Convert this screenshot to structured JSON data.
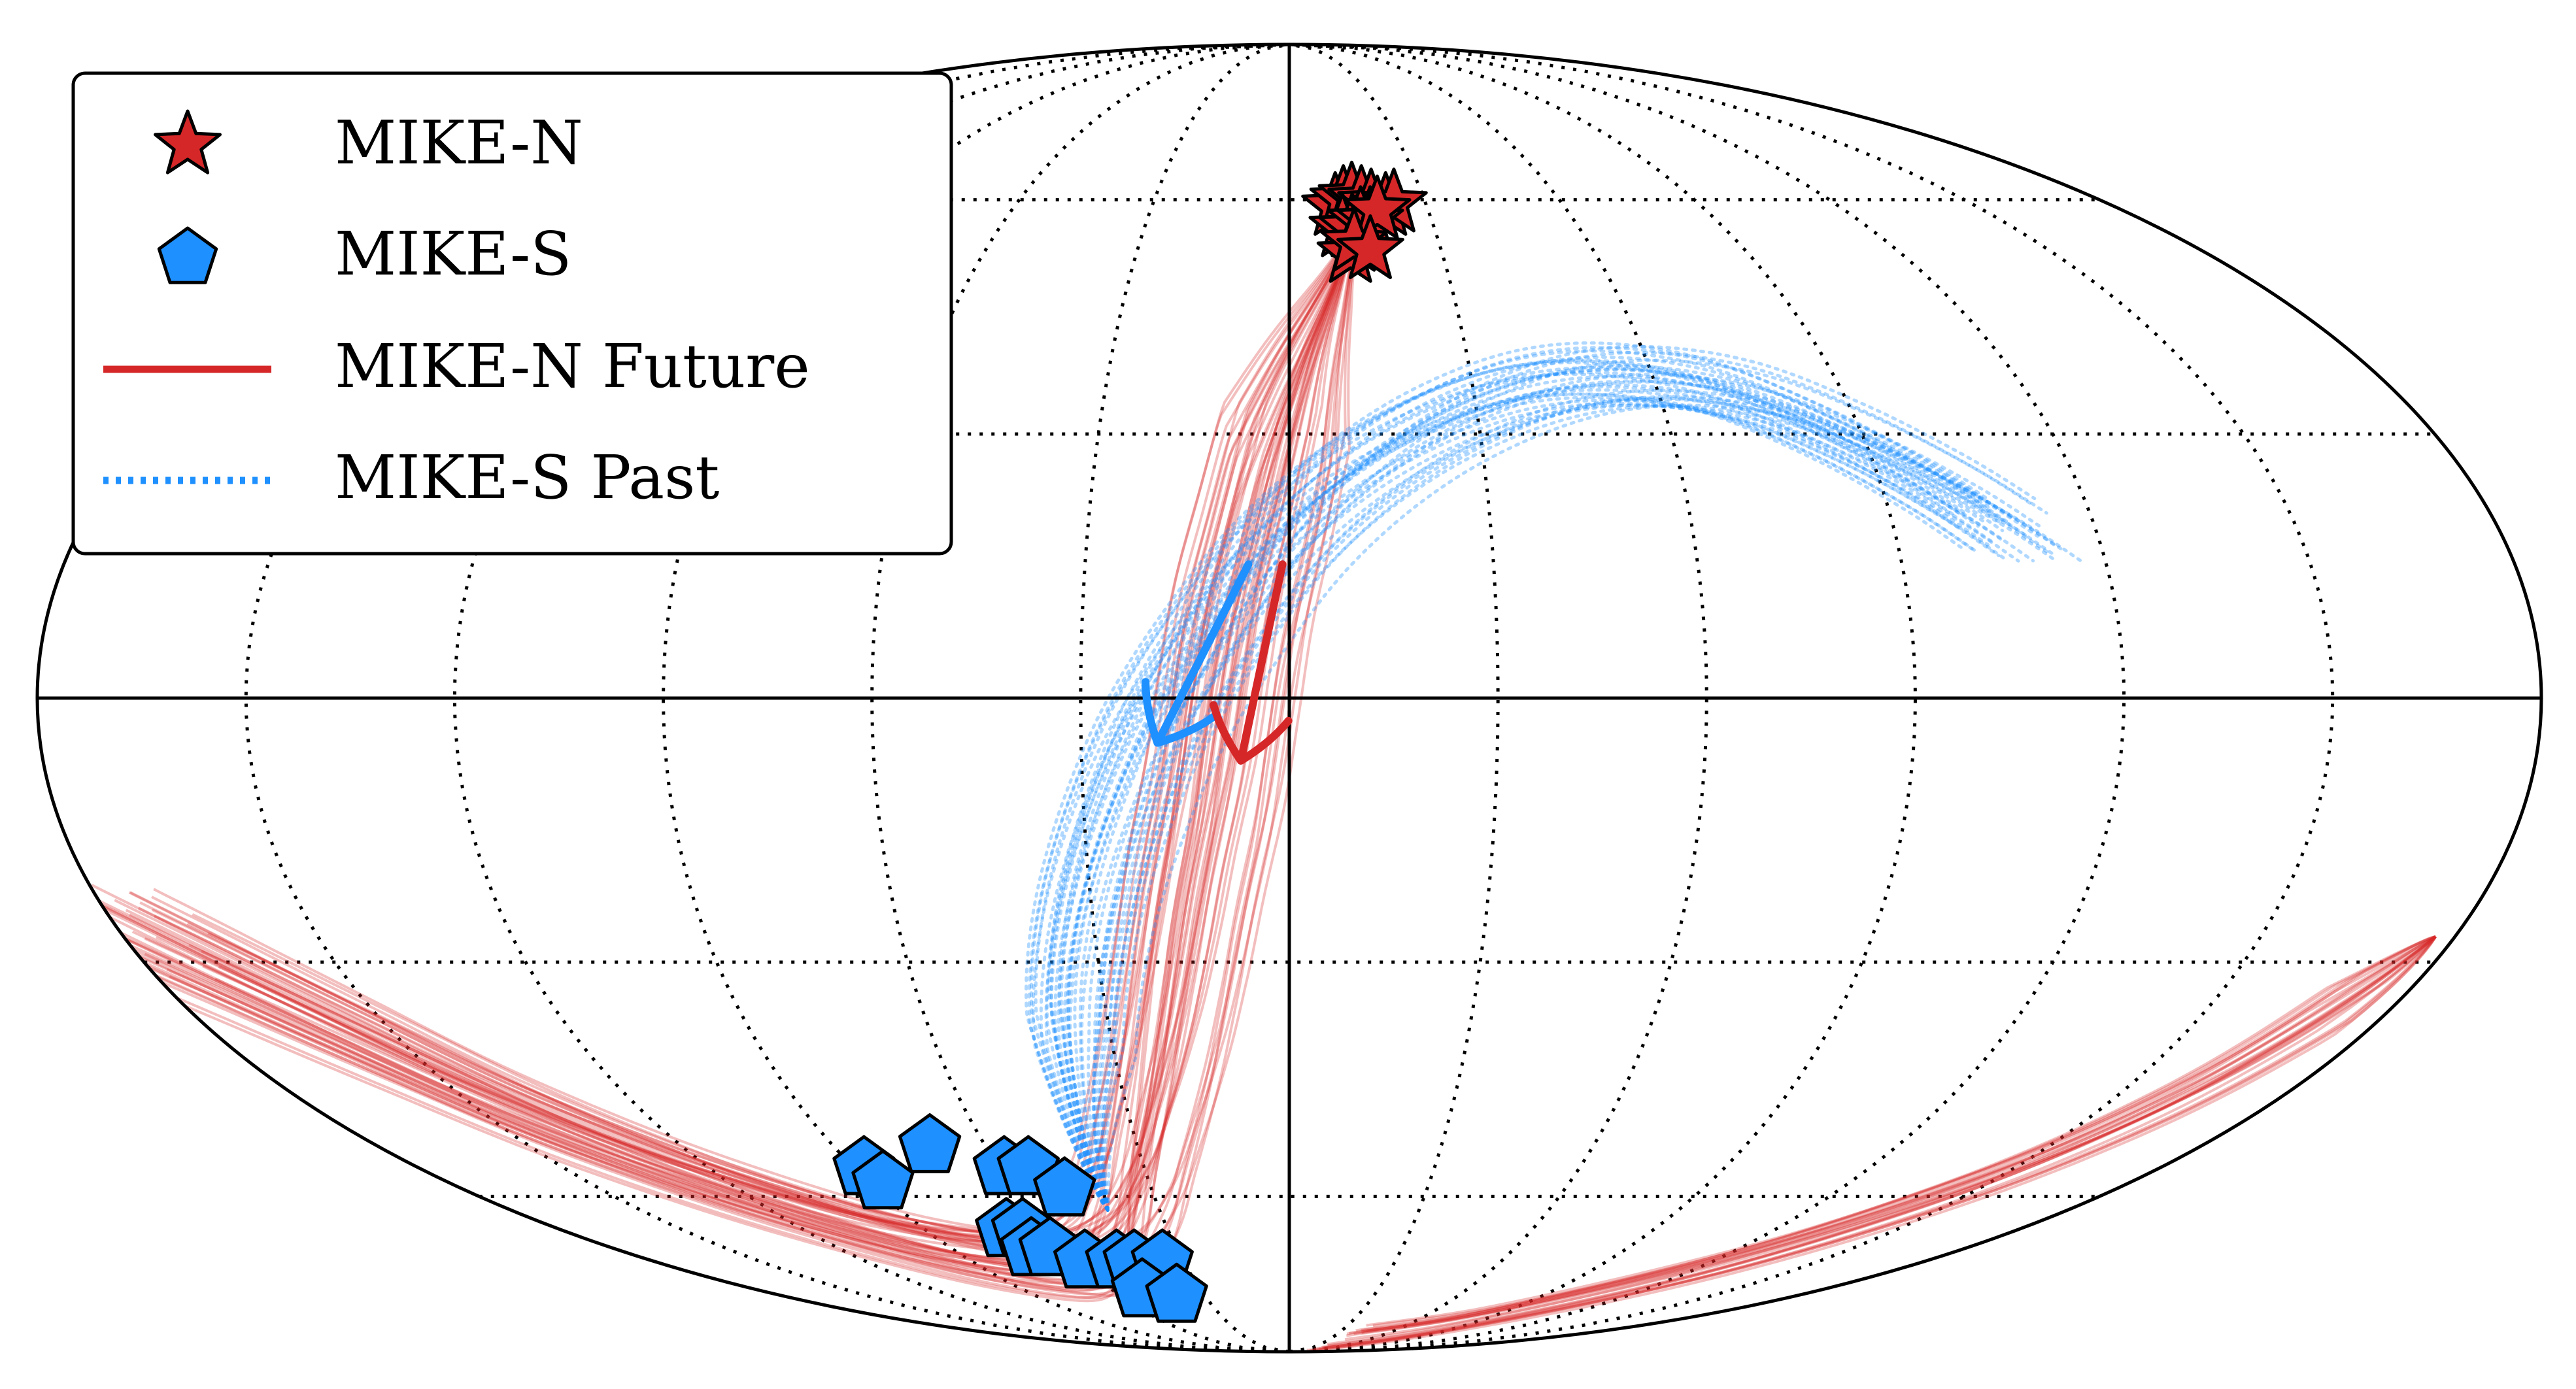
{
  "chart_data": {
    "type": "scatter",
    "projection": "mollweide",
    "grid": true,
    "legend_placement": "top-left",
    "grid_meridians_deg": [
      -150,
      -120,
      -90,
      -60,
      -30,
      0,
      30,
      60,
      90,
      120,
      150
    ],
    "grid_parallels_deg": [
      -60,
      -30,
      0,
      30,
      60
    ],
    "colors": {
      "mike_n": "#d62728",
      "mike_s": "#1e90ff",
      "grid": "#000000"
    },
    "legend": [
      {
        "label": "MIKE-N",
        "marker": "star",
        "color": "#d62728"
      },
      {
        "label": "MIKE-S",
        "marker": "pentagon",
        "color": "#1e90ff"
      },
      {
        "label": "MIKE-N Future",
        "marker": "solid-line",
        "color": "#d62728"
      },
      {
        "label": "MIKE-S Past",
        "marker": "dotted-line",
        "color": "#1e90ff"
      }
    ],
    "series": [
      {
        "name": "MIKE-N",
        "marker": "star",
        "points": [
          [
            10,
            59
          ],
          [
            12,
            60
          ],
          [
            14,
            60.5
          ],
          [
            16,
            60
          ],
          [
            18,
            59.5
          ],
          [
            21,
            59
          ],
          [
            23,
            59.5
          ],
          [
            11,
            56
          ],
          [
            13,
            56
          ],
          [
            15,
            57
          ],
          [
            17,
            57
          ],
          [
            19,
            58.5
          ],
          [
            12,
            52.5
          ],
          [
            13,
            54
          ],
          [
            16,
            53
          ]
        ]
      },
      {
        "name": "MIKE-S",
        "marker": "pentagon",
        "points": [
          [
            -88,
            -56
          ],
          [
            -87,
            -58
          ],
          [
            -71,
            -53
          ],
          [
            -59,
            -56
          ],
          [
            -54,
            -56
          ],
          [
            -49,
            -59
          ],
          [
            -70,
            -65
          ],
          [
            -66,
            -65
          ],
          [
            -69,
            -68
          ],
          [
            -64,
            -68
          ],
          [
            -58,
            -70
          ],
          [
            -49,
            -70
          ],
          [
            -44,
            -70
          ],
          [
            -36,
            -70
          ],
          [
            -50,
            -75
          ],
          [
            -40,
            -76
          ]
        ]
      },
      {
        "name": "MIKE-N Future",
        "style": "solid",
        "path_deg": [
          [
            13,
            55
          ],
          [
            8,
            47
          ],
          [
            3,
            38
          ],
          [
            -1,
            28
          ],
          [
            -4,
            18
          ],
          [
            -7,
            8
          ],
          [
            -9,
            -2
          ],
          [
            -11,
            -12
          ],
          [
            -14,
            -22
          ],
          [
            -17,
            -32
          ],
          [
            -21,
            -42
          ],
          [
            -27,
            -52
          ],
          [
            -35,
            -61
          ],
          [
            -48,
            -68
          ],
          [
            -68,
            -71
          ],
          [
            -95,
            -68
          ],
          [
            -120,
            -60
          ],
          [
            -140,
            -50
          ],
          [
            -155,
            -40
          ],
          [
            -168,
            -32
          ],
          [
            -177,
            -27
          ]
        ],
        "tail_path_deg": [
          [
            177,
            -27
          ],
          [
            170,
            -36
          ],
          [
            160,
            -48
          ],
          [
            145,
            -60
          ],
          [
            120,
            -72
          ],
          [
            80,
            -82
          ],
          [
            40,
            -86
          ]
        ]
      },
      {
        "name": "MIKE-S Past",
        "style": "dotted",
        "path_deg": [
          [
            -42,
            -62
          ],
          [
            -39,
            -52
          ],
          [
            -36,
            -42
          ],
          [
            -33,
            -32
          ],
          [
            -29,
            -22
          ],
          [
            -24,
            -12
          ],
          [
            -18,
            -2
          ],
          [
            -10,
            8
          ],
          [
            0,
            18
          ],
          [
            12,
            26
          ],
          [
            26,
            32
          ],
          [
            42,
            36
          ],
          [
            58,
            37
          ],
          [
            74,
            35
          ],
          [
            88,
            30
          ],
          [
            100,
            24
          ],
          [
            108,
            19
          ]
        ]
      }
    ],
    "arrows": [
      {
        "series": "MIKE-S Past",
        "from_deg": [
          -6,
          15
        ],
        "to_deg": [
          -19,
          -5
        ]
      },
      {
        "series": "MIKE-N Future",
        "from_deg": [
          -1,
          15
        ],
        "to_deg": [
          -7,
          -7
        ]
      }
    ]
  }
}
